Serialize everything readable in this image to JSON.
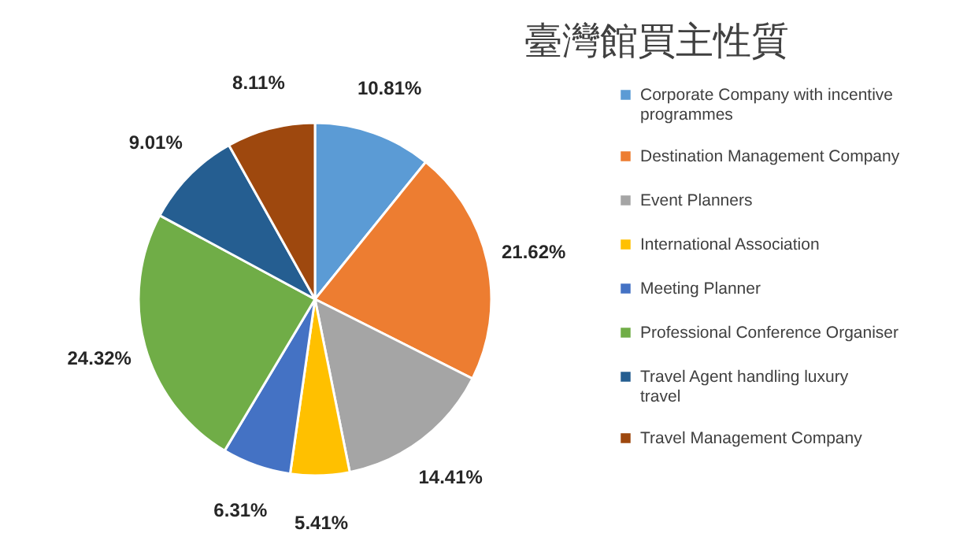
{
  "chart_data": {
    "type": "pie",
    "title": "臺灣館買主性質",
    "categories": [
      "Corporate Company with incentive programmes",
      "Destination Management Company",
      "Event Planners",
      "International Association",
      "Meeting Planner",
      "Professional Conference Organiser",
      "Travel Agent handling luxury travel",
      "Travel Management Company"
    ],
    "values": [
      10.81,
      21.62,
      14.41,
      5.41,
      6.31,
      24.32,
      9.01,
      8.11
    ],
    "value_labels": [
      "10.81%",
      "21.62%",
      "14.41%",
      "5.41%",
      "6.31%",
      "24.32%",
      "9.01%",
      "8.11%"
    ],
    "colors": [
      "#5b9bd5",
      "#ed7d31",
      "#a5a5a5",
      "#ffc000",
      "#4472c4",
      "#70ad47",
      "#255e91",
      "#9e480e"
    ],
    "legend": "right"
  }
}
